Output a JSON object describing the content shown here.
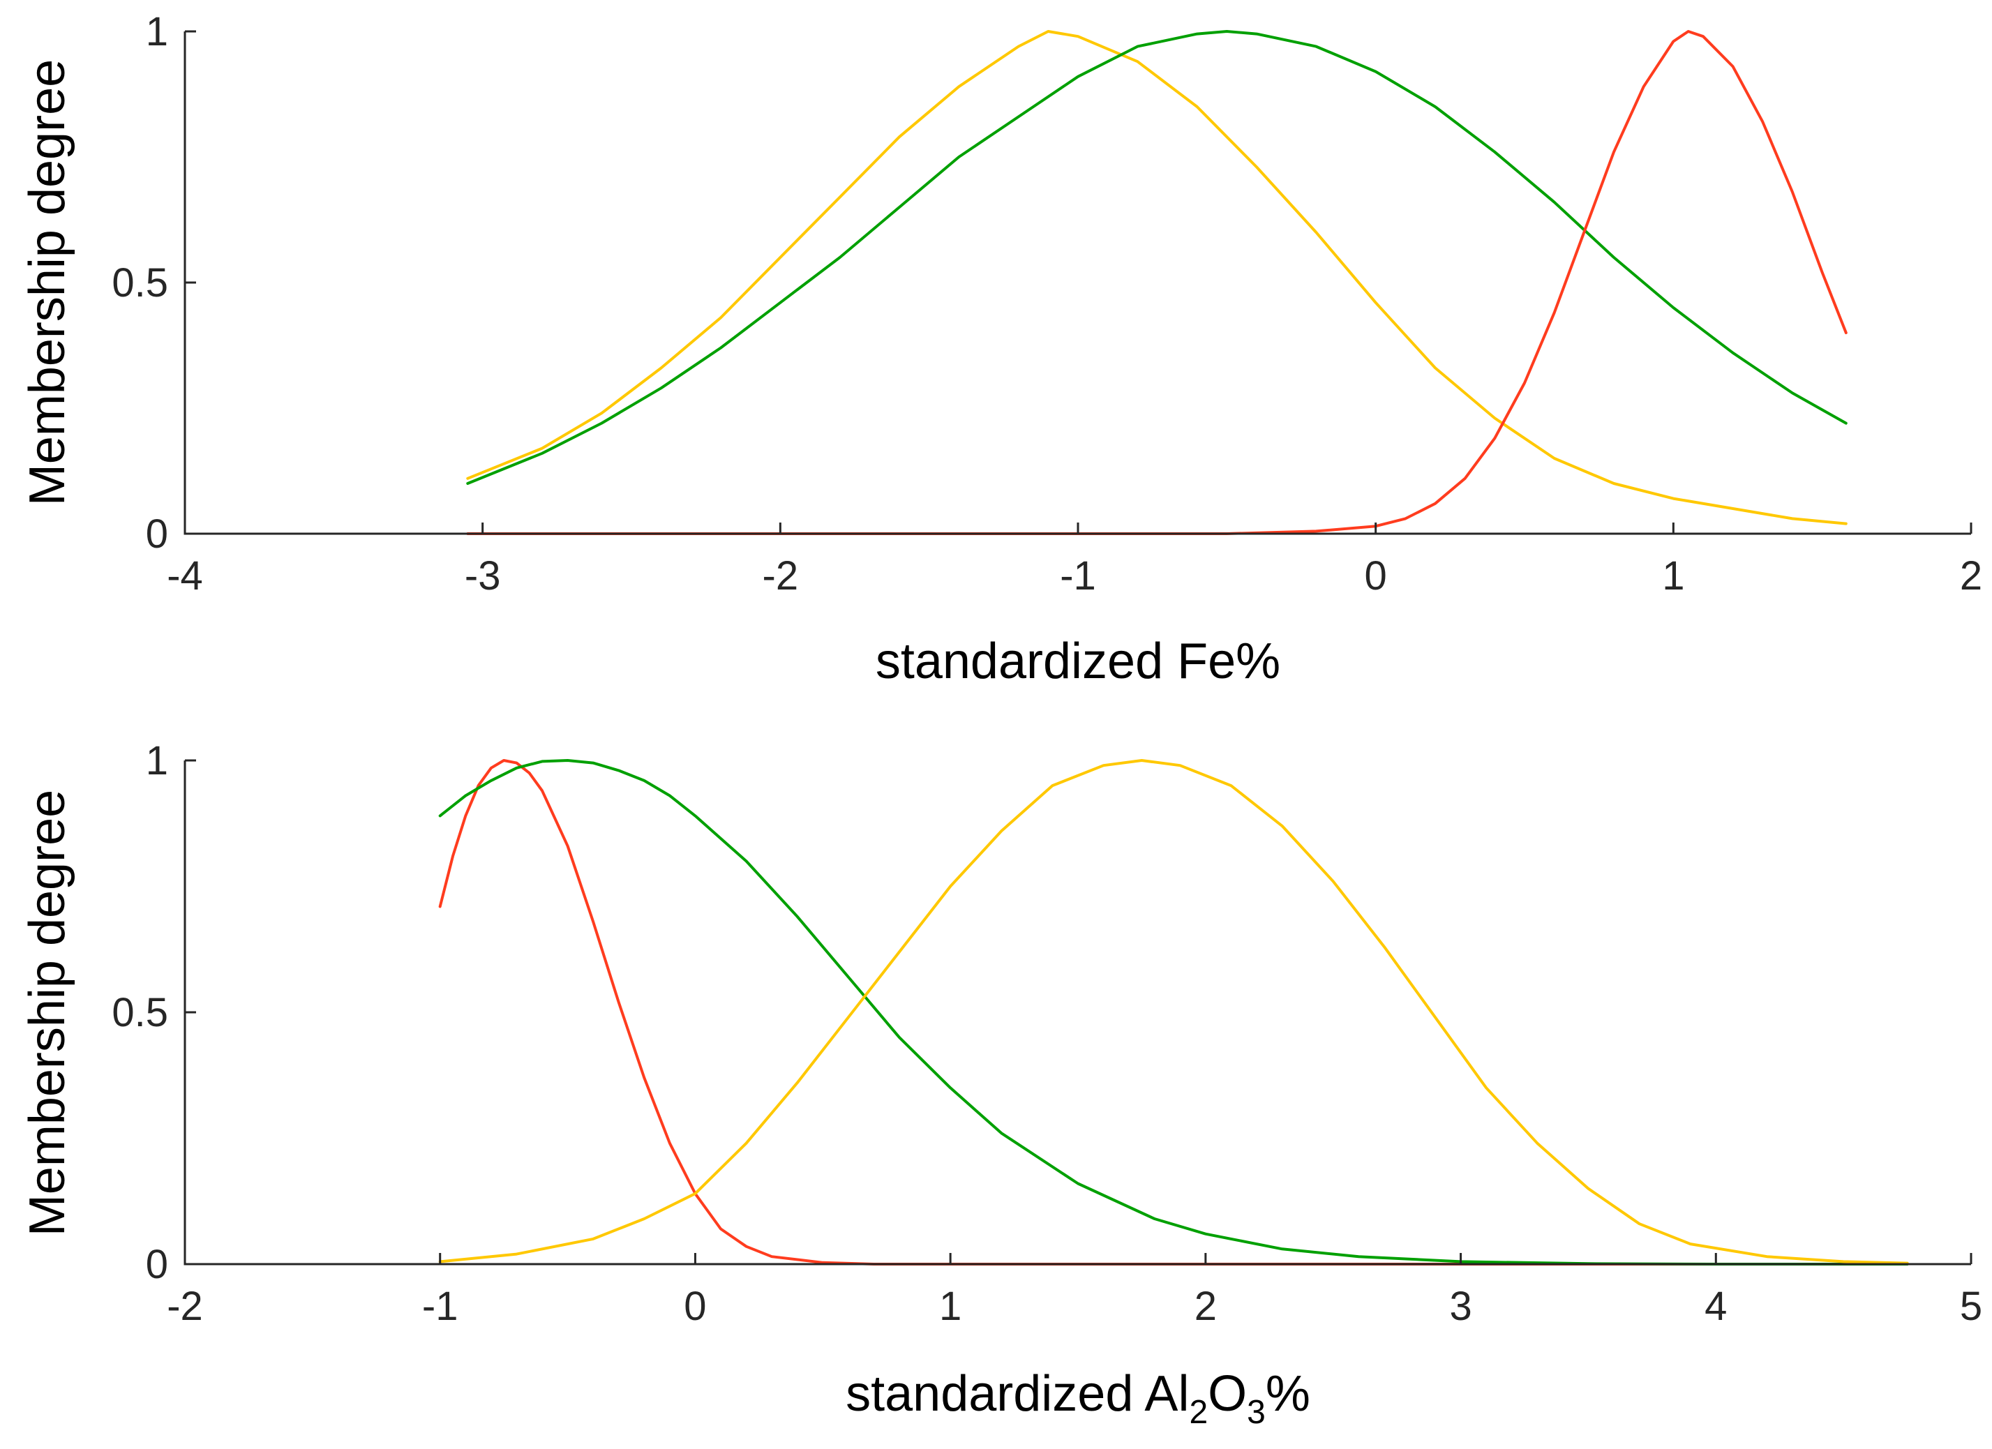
{
  "chart_data": [
    {
      "type": "line",
      "xlabel": "standardized Fe%",
      "ylabel": "Membership degree",
      "xlim": [
        -4,
        2
      ],
      "ylim": [
        0,
        1
      ],
      "xticks": [
        "-4",
        "-3",
        "-2",
        "-1",
        "0",
        "1",
        "2"
      ],
      "yticks": [
        "0",
        "0.5",
        "1"
      ],
      "grid": false,
      "series": [
        {
          "color": "#FFC800",
          "x": [
            -3.05,
            -2.8,
            -2.6,
            -2.4,
            -2.2,
            -2.0,
            -1.8,
            -1.6,
            -1.4,
            -1.2,
            -1.1,
            -1.0,
            -0.8,
            -0.6,
            -0.4,
            -0.2,
            0.0,
            0.2,
            0.4,
            0.6,
            0.8,
            1.0,
            1.2,
            1.4,
            1.58
          ],
          "y": [
            0.11,
            0.17,
            0.24,
            0.33,
            0.43,
            0.55,
            0.67,
            0.79,
            0.89,
            0.97,
            1.0,
            0.99,
            0.94,
            0.85,
            0.73,
            0.6,
            0.46,
            0.33,
            0.23,
            0.15,
            0.1,
            0.07,
            0.05,
            0.03,
            0.02
          ]
        },
        {
          "color": "#00A000",
          "x": [
            -3.05,
            -2.8,
            -2.6,
            -2.4,
            -2.2,
            -2.0,
            -1.8,
            -1.6,
            -1.4,
            -1.2,
            -1.0,
            -0.8,
            -0.6,
            -0.5,
            -0.4,
            -0.2,
            0.0,
            0.2,
            0.4,
            0.6,
            0.8,
            1.0,
            1.2,
            1.4,
            1.58
          ],
          "y": [
            0.1,
            0.16,
            0.22,
            0.29,
            0.37,
            0.46,
            0.55,
            0.65,
            0.75,
            0.83,
            0.91,
            0.97,
            0.995,
            1.0,
            0.995,
            0.97,
            0.92,
            0.85,
            0.76,
            0.66,
            0.55,
            0.45,
            0.36,
            0.28,
            0.22
          ]
        },
        {
          "color": "#FF3C1E",
          "x": [
            -3.05,
            -1.0,
            -0.5,
            -0.2,
            0.0,
            0.1,
            0.2,
            0.3,
            0.4,
            0.5,
            0.6,
            0.7,
            0.8,
            0.9,
            1.0,
            1.05,
            1.1,
            1.2,
            1.3,
            1.4,
            1.5,
            1.58
          ],
          "y": [
            0.0,
            0.0,
            0.0,
            0.005,
            0.015,
            0.03,
            0.06,
            0.11,
            0.19,
            0.3,
            0.44,
            0.6,
            0.76,
            0.89,
            0.98,
            1.0,
            0.99,
            0.93,
            0.82,
            0.68,
            0.52,
            0.4
          ]
        }
      ]
    },
    {
      "type": "line",
      "xlabel": "standardized Al",
      "xlabel_sub1": "2",
      "xlabel_mid": "O",
      "xlabel_sub2": "3",
      "xlabel_tail": "%",
      "ylabel": "Membership degree",
      "xlim": [
        -2,
        5
      ],
      "ylim": [
        0,
        1
      ],
      "xticks": [
        "-2",
        "-1",
        "0",
        "1",
        "2",
        "3",
        "4",
        "5"
      ],
      "yticks": [
        "0",
        "0.5",
        "1"
      ],
      "grid": false,
      "series": [
        {
          "color": "#FF3C1E",
          "x": [
            -1.0,
            -0.95,
            -0.9,
            -0.85,
            -0.8,
            -0.75,
            -0.7,
            -0.65,
            -0.6,
            -0.5,
            -0.4,
            -0.3,
            -0.2,
            -0.1,
            0.0,
            0.1,
            0.2,
            0.3,
            0.5,
            0.7,
            1.0,
            2.0,
            3.0,
            4.0,
            4.75
          ],
          "y": [
            0.71,
            0.81,
            0.89,
            0.95,
            0.985,
            1.0,
            0.995,
            0.975,
            0.94,
            0.83,
            0.68,
            0.52,
            0.37,
            0.24,
            0.14,
            0.07,
            0.035,
            0.015,
            0.003,
            0.0,
            0.0,
            0.0,
            0.0,
            0.0,
            0.0
          ]
        },
        {
          "color": "#00A000",
          "x": [
            -1.0,
            -0.9,
            -0.8,
            -0.7,
            -0.6,
            -0.5,
            -0.4,
            -0.3,
            -0.2,
            -0.1,
            0.0,
            0.2,
            0.4,
            0.6,
            0.8,
            1.0,
            1.2,
            1.5,
            1.8,
            2.0,
            2.3,
            2.6,
            3.0,
            3.5,
            4.0,
            4.75
          ],
          "y": [
            0.89,
            0.93,
            0.96,
            0.985,
            0.998,
            1.0,
            0.995,
            0.98,
            0.96,
            0.93,
            0.89,
            0.8,
            0.69,
            0.57,
            0.45,
            0.35,
            0.26,
            0.16,
            0.09,
            0.06,
            0.03,
            0.015,
            0.005,
            0.001,
            0.0,
            0.0
          ]
        },
        {
          "color": "#FFC800",
          "x": [
            -1.0,
            -0.7,
            -0.4,
            -0.2,
            0.0,
            0.2,
            0.4,
            0.6,
            0.8,
            1.0,
            1.2,
            1.4,
            1.6,
            1.75,
            1.9,
            2.1,
            2.3,
            2.5,
            2.7,
            2.9,
            3.1,
            3.3,
            3.5,
            3.7,
            3.9,
            4.2,
            4.5,
            4.75
          ],
          "y": [
            0.005,
            0.02,
            0.05,
            0.09,
            0.14,
            0.24,
            0.36,
            0.49,
            0.62,
            0.75,
            0.86,
            0.95,
            0.99,
            1.0,
            0.99,
            0.95,
            0.87,
            0.76,
            0.63,
            0.49,
            0.35,
            0.24,
            0.15,
            0.08,
            0.04,
            0.015,
            0.005,
            0.002
          ]
        }
      ]
    }
  ]
}
